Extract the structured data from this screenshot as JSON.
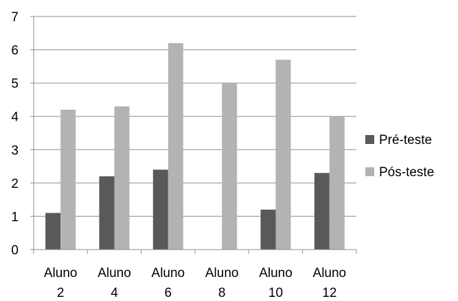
{
  "chart_data": {
    "type": "bar",
    "title": "",
    "xlabel": "",
    "ylabel": "",
    "categories": [
      [
        "Aluno",
        "2"
      ],
      [
        "Aluno",
        "4"
      ],
      [
        "Aluno",
        "6"
      ],
      [
        "Aluno",
        "8"
      ],
      [
        "Aluno",
        "10"
      ],
      [
        "Aluno",
        "12"
      ]
    ],
    "series": [
      {
        "name": "Pré-teste",
        "color": "#595959",
        "values": [
          1.1,
          2.2,
          2.4,
          0,
          1.2,
          2.3
        ]
      },
      {
        "name": "Pós-teste",
        "color": "#b3b3b3",
        "values": [
          4.2,
          4.3,
          6.2,
          5.0,
          5.7,
          4.0
        ]
      }
    ],
    "ylim": [
      0,
      7
    ],
    "yticks": [
      "0",
      "1",
      "2",
      "3",
      "4",
      "5",
      "6",
      "7"
    ],
    "grid": true,
    "legend_position": "right"
  }
}
